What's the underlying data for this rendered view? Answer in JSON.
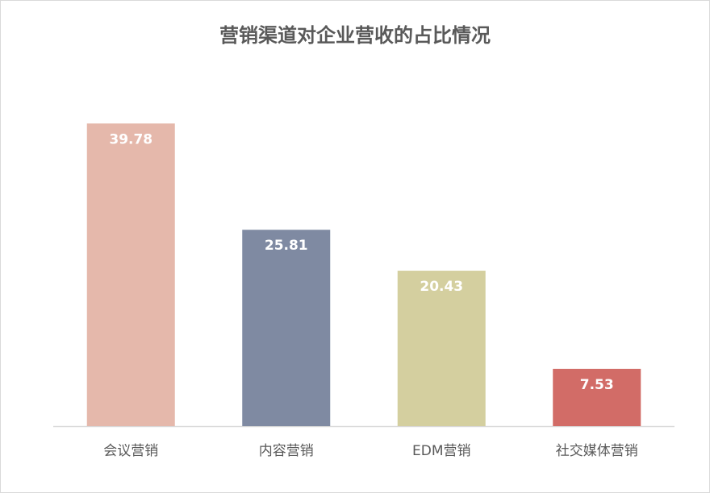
{
  "chart_data": {
    "type": "bar",
    "title": "营销渠道对企业营收的占比情况",
    "categories": [
      "会议营销",
      "内容营销",
      "EDM营销",
      "社交媒体营销"
    ],
    "values": [
      39.78,
      25.81,
      20.43,
      7.53
    ],
    "colors": [
      "#e5b8ab",
      "#7f8aa2",
      "#d4cf9f",
      "#d26c67"
    ],
    "ylim": [
      0,
      45
    ]
  }
}
